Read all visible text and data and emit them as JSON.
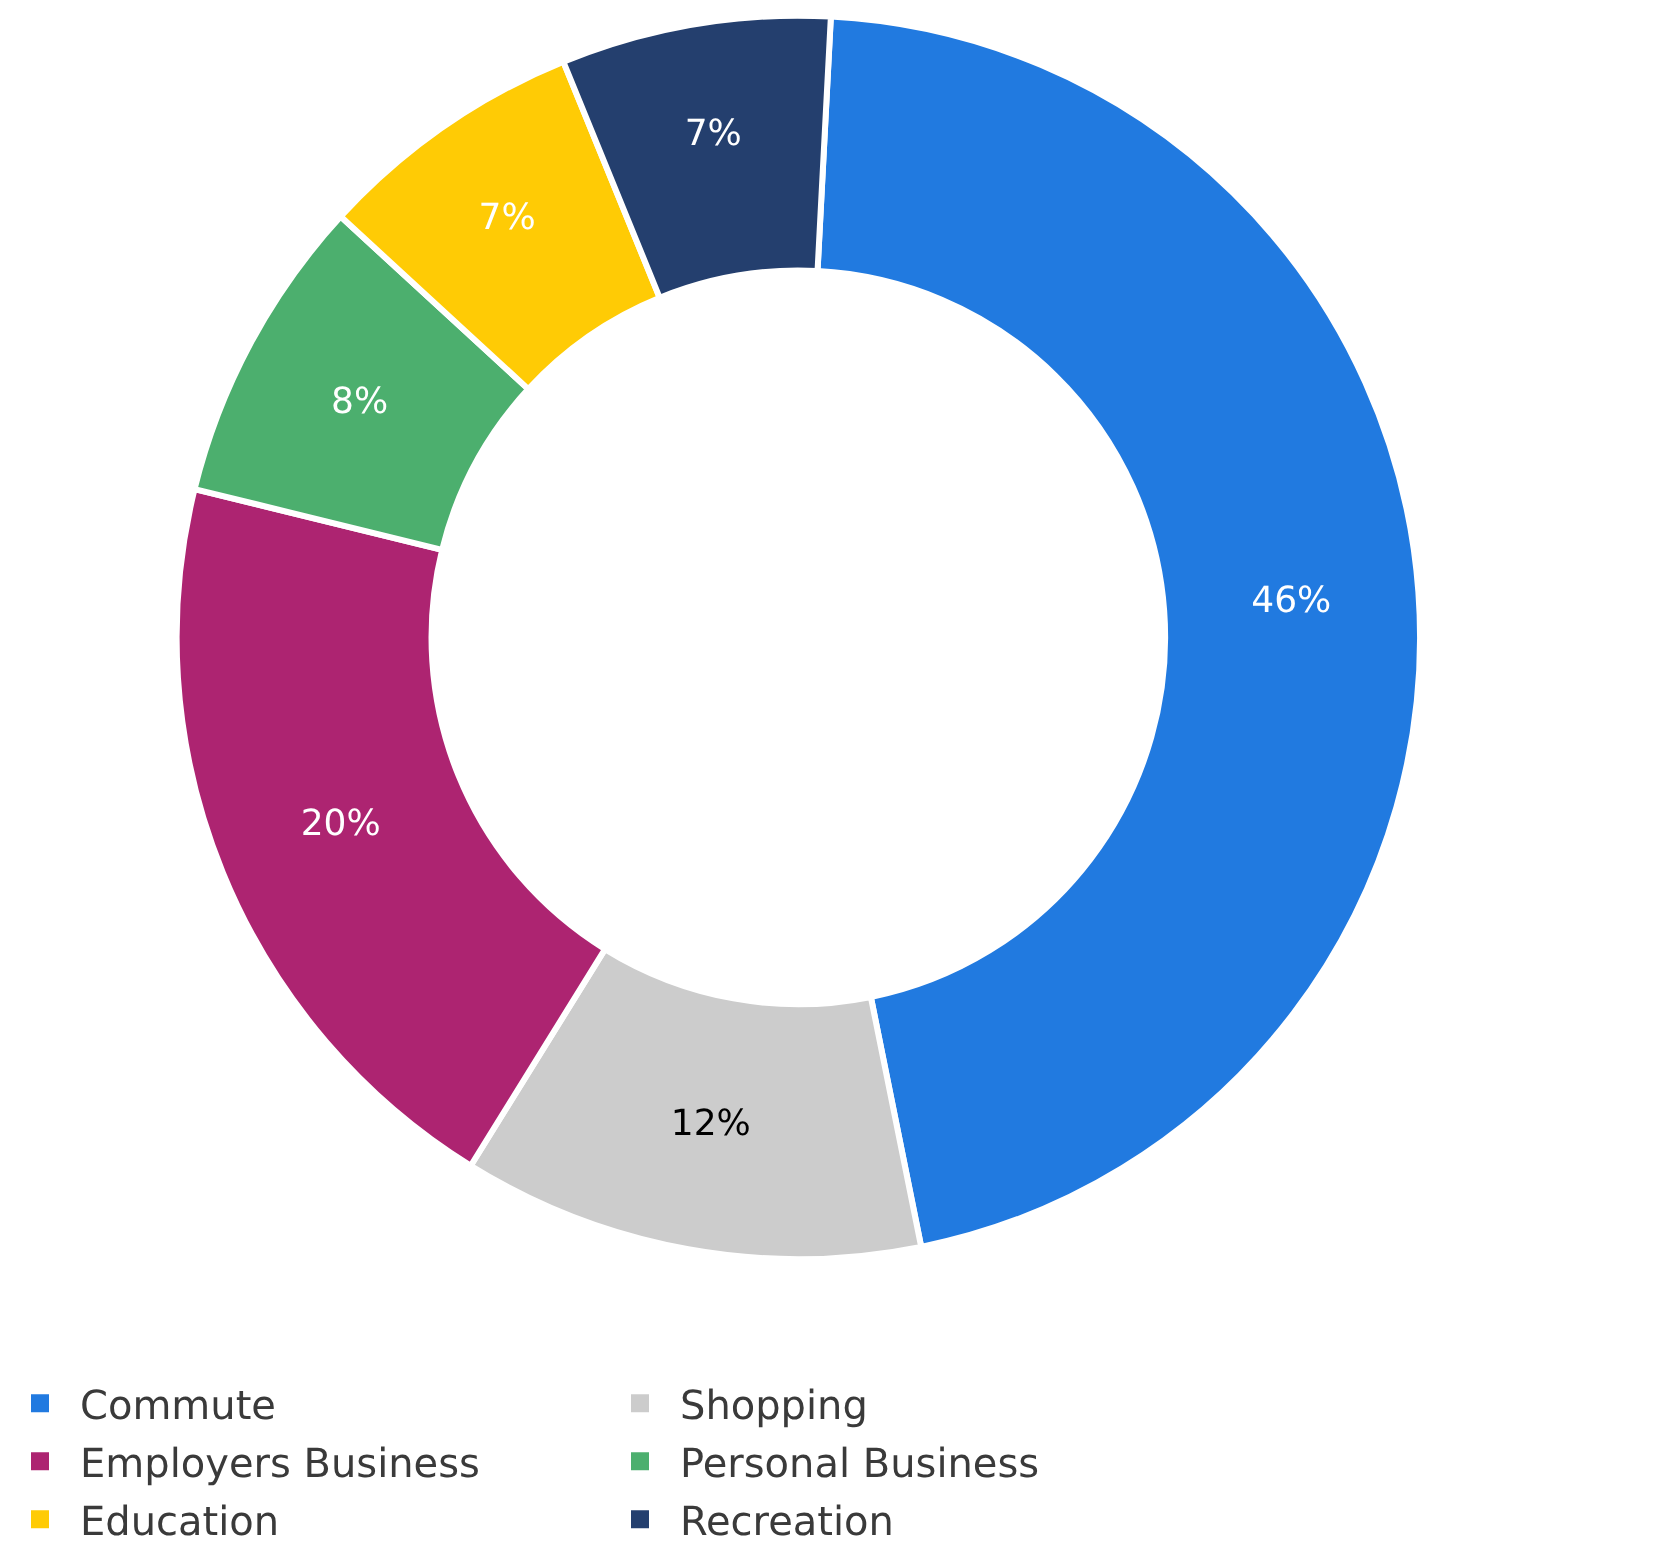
{
  "chart_data": {
    "type": "donut",
    "categories": [
      "Commute",
      "Shopping",
      "Employers Business",
      "Personal Business",
      "Education",
      "Recreation"
    ],
    "values": [
      46,
      12,
      20,
      8,
      7,
      7
    ],
    "colors": [
      "#217ae0",
      "#cccccc",
      "#ad2471",
      "#4caf6e",
      "#ffcb05",
      "#243f6e"
    ],
    "value_labels": [
      "46%",
      "12%",
      "20%",
      "8%",
      "7%",
      "7%"
    ],
    "legend": "bottom"
  }
}
